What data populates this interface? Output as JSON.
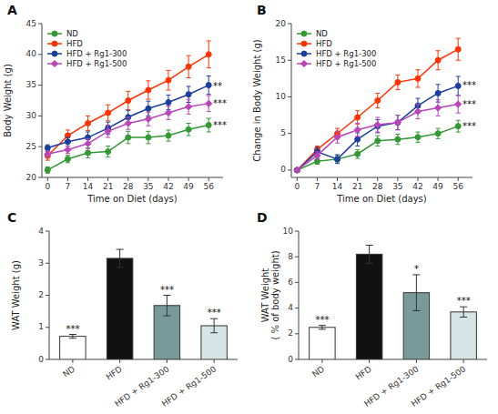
{
  "chart_data": [
    {
      "type": "line",
      "title": "A",
      "xlabel": "Time on Diet (days)",
      "ylabel": "Body Weight (g)",
      "x": [
        0,
        7,
        14,
        21,
        28,
        35,
        42,
        49,
        56
      ],
      "xlim": [
        -2,
        61
      ],
      "xticks": [
        0,
        7,
        14,
        21,
        28,
        35,
        42,
        49,
        56
      ],
      "ylim": [
        20,
        45
      ],
      "yticks": [
        20,
        25,
        30,
        35,
        40,
        45
      ],
      "grid": false,
      "legend": "upper left",
      "series": [
        {
          "name": "ND",
          "color": "#339933",
          "marker": "circle",
          "values": [
            21.2,
            23.0,
            24.0,
            24.2,
            26.5,
            26.5,
            26.8,
            27.8,
            28.5
          ],
          "errors": [
            0.5,
            0.6,
            0.8,
            0.9,
            1.0,
            1.0,
            0.9,
            1.0,
            1.1
          ]
        },
        {
          "name": "HFD",
          "color": "#ff3300",
          "marker": "circle",
          "values": [
            23.5,
            26.8,
            28.8,
            30.5,
            32.5,
            34.2,
            35.8,
            38.0,
            40.0
          ],
          "errors": [
            0.7,
            0.9,
            1.2,
            1.3,
            1.5,
            1.5,
            1.6,
            1.8,
            2.2
          ]
        },
        {
          "name": "HFD + Rg1-300",
          "color": "#1a3fa0",
          "marker": "circle",
          "values": [
            24.8,
            25.8,
            26.5,
            28.0,
            29.8,
            31.2,
            32.2,
            33.5,
            35.0
          ],
          "errors": [
            0.5,
            0.7,
            0.9,
            1.0,
            1.1,
            1.2,
            1.2,
            1.3,
            1.5
          ]
        },
        {
          "name": "HFD + Rg1-500",
          "color": "#bb44bb",
          "marker": "diamond",
          "values": [
            23.8,
            24.5,
            25.5,
            27.5,
            28.8,
            29.5,
            30.5,
            31.5,
            32.0
          ],
          "errors": [
            0.5,
            0.6,
            0.8,
            1.0,
            1.0,
            1.1,
            1.1,
            1.2,
            1.3
          ]
        }
      ],
      "annotations": [
        {
          "text": "**",
          "x": 57.5,
          "y": 34.8
        },
        {
          "text": "***",
          "x": 57.5,
          "y": 32.0
        },
        {
          "text": "***",
          "x": 57.5,
          "y": 28.5
        }
      ]
    },
    {
      "type": "line",
      "title": "B",
      "xlabel": "Time on Diet (days)",
      "ylabel": "Change in Body Weight (g)",
      "x": [
        0,
        7,
        14,
        21,
        28,
        35,
        42,
        49,
        56
      ],
      "xlim": [
        -2,
        61
      ],
      "xticks": [
        0,
        7,
        14,
        21,
        28,
        35,
        42,
        49,
        56
      ],
      "ylim": [
        -1,
        20
      ],
      "yticks": [
        0,
        5,
        10,
        15,
        20
      ],
      "grid": false,
      "legend": "upper left",
      "series": [
        {
          "name": "ND",
          "color": "#339933",
          "marker": "circle",
          "values": [
            0.0,
            1.2,
            1.5,
            2.2,
            4.0,
            4.2,
            4.5,
            5.0,
            6.0
          ],
          "errors": [
            0.0,
            0.4,
            0.5,
            0.6,
            0.7,
            0.7,
            0.7,
            0.7,
            0.8
          ]
        },
        {
          "name": "HFD",
          "color": "#ff3300",
          "marker": "circle",
          "values": [
            0.0,
            2.8,
            5.0,
            7.2,
            9.5,
            12.0,
            12.5,
            15.0,
            16.5
          ],
          "errors": [
            0.0,
            0.5,
            0.7,
            0.9,
            1.0,
            1.0,
            1.2,
            1.3,
            1.5
          ]
        },
        {
          "name": "HFD + Rg1-300",
          "color": "#1a3fa0",
          "marker": "circle",
          "values": [
            0.0,
            2.5,
            1.5,
            4.2,
            6.0,
            6.5,
            8.8,
            10.5,
            11.5
          ],
          "errors": [
            0.0,
            0.6,
            0.6,
            0.9,
            0.9,
            1.0,
            1.0,
            1.2,
            1.3
          ]
        },
        {
          "name": "HFD + Rg1-500",
          "color": "#bb44bb",
          "marker": "diamond",
          "values": [
            0.0,
            2.0,
            4.5,
            5.5,
            6.2,
            6.5,
            8.0,
            8.5,
            9.0
          ],
          "errors": [
            0.0,
            0.5,
            0.8,
            0.9,
            1.0,
            1.0,
            1.0,
            1.1,
            1.2
          ]
        }
      ],
      "annotations": [
        {
          "text": "***",
          "x": 57.5,
          "y": 11.5
        },
        {
          "text": "***",
          "x": 57.5,
          "y": 9.0
        },
        {
          "text": "***",
          "x": 57.5,
          "y": 6.0
        }
      ]
    },
    {
      "type": "bar",
      "title": "C",
      "ylabel": "WAT Weight (g)",
      "categories": [
        "ND",
        "HFD",
        "HFD + Rg1-300",
        "HFD + Rg1-500"
      ],
      "values": [
        0.72,
        3.15,
        1.68,
        1.05
      ],
      "errors": [
        0.06,
        0.28,
        0.32,
        0.22
      ],
      "colors": [
        "#ffffff",
        "#111111",
        "#7a9a9a",
        "#d5e5e5"
      ],
      "ylim": [
        0,
        4
      ],
      "yticks": [
        0,
        1,
        2,
        3,
        4
      ],
      "grid": false,
      "annotations": [
        {
          "text": "***",
          "x": "ND"
        },
        {
          "text": "***",
          "x": "HFD + Rg1-300"
        },
        {
          "text": "***",
          "x": "HFD + Rg1-500"
        }
      ]
    },
    {
      "type": "bar",
      "title": "D",
      "ylabel": "WAT Weight\n( % of body weight)",
      "categories": [
        "ND",
        "HFD",
        "HFD + Rg1-300",
        "HFD + Rg1-500"
      ],
      "values": [
        2.5,
        8.2,
        5.2,
        3.7
      ],
      "errors": [
        0.15,
        0.7,
        1.4,
        0.4
      ],
      "colors": [
        "#ffffff",
        "#111111",
        "#7a9a9a",
        "#d5e5e5"
      ],
      "ylim": [
        0,
        10
      ],
      "yticks": [
        0,
        2,
        4,
        6,
        8,
        10
      ],
      "grid": false,
      "annotations": [
        {
          "text": "***",
          "x": "ND"
        },
        {
          "text": "*",
          "x": "HFD + Rg1-300"
        },
        {
          "text": "***",
          "x": "HFD + Rg1-500"
        }
      ]
    }
  ]
}
